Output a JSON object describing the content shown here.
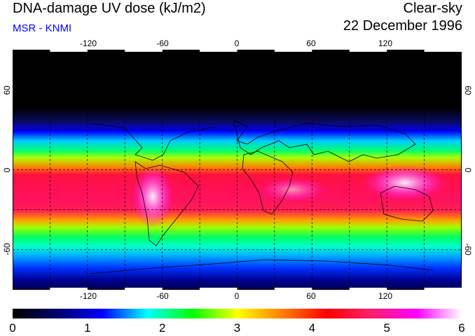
{
  "header": {
    "title": "DNA-damage UV dose (kJ/m2)",
    "subtitle": "MSR - KNMI",
    "sky_condition": "Clear-sky",
    "date": "22 December 1996"
  },
  "map": {
    "lon_labels_top": [
      "-120",
      "-60",
      "0",
      "60",
      "120"
    ],
    "lon_labels_bottom": [
      "-120",
      "-60",
      "0",
      "60",
      "120"
    ],
    "lat_labels_left": [
      "60",
      "0",
      "-60"
    ],
    "lat_labels_right": [
      "60",
      "0",
      "-60"
    ],
    "lon_ticks": [
      -120,
      -60,
      0,
      60,
      120
    ],
    "lat_ticks": [
      60,
      0,
      -60
    ],
    "lon_range": [
      -180,
      180
    ],
    "lat_range": [
      -90,
      90
    ],
    "grid_line_color": "#000000",
    "coastline_color": "#000000"
  },
  "colorbar": {
    "labels": [
      "0",
      "1",
      "2",
      "3",
      "4",
      "5",
      "6"
    ],
    "min": 0,
    "max": 6,
    "stops": [
      "#000000",
      "#000070",
      "#0000ff",
      "#00ffff",
      "#00ff00",
      "#ffff00",
      "#ff7f00",
      "#ff0000",
      "#ff1e6e",
      "#ff00ff",
      "#ffffff"
    ]
  }
}
